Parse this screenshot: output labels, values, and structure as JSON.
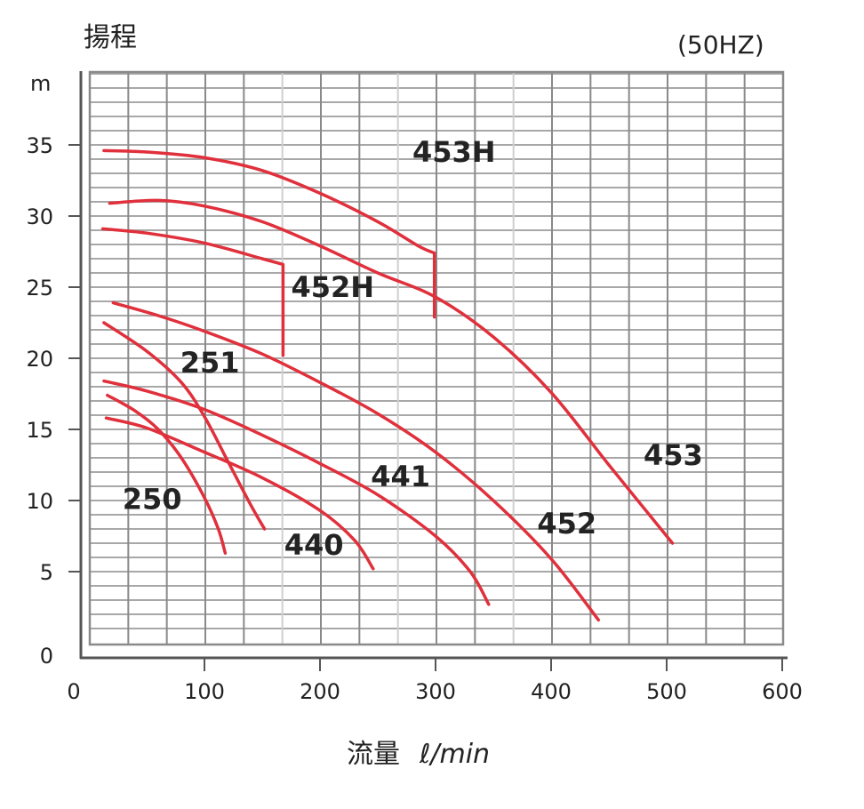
{
  "chart_data": {
    "type": "line",
    "title": "",
    "ylabel_title": "揚程",
    "yunit": "m",
    "xlabel": "流量 ℓ/min",
    "annotation": "(50HZ)",
    "xlim": [
      0,
      600
    ],
    "ylim": [
      0,
      40
    ],
    "xticks": [
      0,
      100,
      200,
      300,
      400,
      500,
      600
    ],
    "yticks": [
      0,
      5,
      10,
      15,
      20,
      25,
      30,
      35
    ],
    "grid": true,
    "grid_minor_y_step": 1,
    "grid_minor_x_step": 33.33,
    "line_color": "#e0303c",
    "series": [
      {
        "name": "453H",
        "label_pos": [
          280,
          33.8
        ],
        "points": [
          [
            13,
            34.6
          ],
          [
            50,
            34.5
          ],
          [
            100,
            34.1
          ],
          [
            150,
            33.2
          ],
          [
            200,
            31.6
          ],
          [
            250,
            29.6
          ],
          [
            285,
            27.9
          ],
          [
            299,
            27.4
          ],
          [
            299,
            22.9
          ]
        ]
      },
      {
        "name": "453",
        "label_pos": [
          480,
          12.5
        ],
        "points": [
          [
            18,
            30.9
          ],
          [
            60,
            31.1
          ],
          [
            100,
            30.7
          ],
          [
            150,
            29.6
          ],
          [
            200,
            27.9
          ],
          [
            250,
            26.0
          ],
          [
            300,
            24.3
          ],
          [
            350,
            21.5
          ],
          [
            400,
            17.6
          ],
          [
            450,
            12.5
          ],
          [
            505,
            7.0
          ]
        ]
      },
      {
        "name": "452H",
        "label_pos": [
          175,
          24.3
        ],
        "points": [
          [
            12,
            29.1
          ],
          [
            50,
            28.8
          ],
          [
            100,
            28.1
          ],
          [
            150,
            27.0
          ],
          [
            168,
            26.6
          ],
          [
            168,
            20.2
          ]
        ]
      },
      {
        "name": "452",
        "label_pos": [
          388,
          7.7
        ],
        "points": [
          [
            21,
            23.9
          ],
          [
            60,
            23.0
          ],
          [
            100,
            21.9
          ],
          [
            150,
            20.3
          ],
          [
            200,
            18.3
          ],
          [
            250,
            16.1
          ],
          [
            300,
            13.4
          ],
          [
            350,
            10.0
          ],
          [
            400,
            5.9
          ],
          [
            441,
            1.6
          ]
        ]
      },
      {
        "name": "251",
        "label_pos": [
          79,
          19.0
        ],
        "points": [
          [
            13,
            22.5
          ],
          [
            50,
            20.5
          ],
          [
            80,
            18.3
          ],
          [
            100,
            15.9
          ],
          [
            120,
            12.8
          ],
          [
            140,
            9.7
          ],
          [
            152,
            8.0
          ]
        ]
      },
      {
        "name": "441",
        "label_pos": [
          244,
          11.0
        ],
        "points": [
          [
            13,
            18.4
          ],
          [
            50,
            17.7
          ],
          [
            100,
            16.4
          ],
          [
            150,
            14.6
          ],
          [
            200,
            12.6
          ],
          [
            250,
            10.4
          ],
          [
            300,
            7.5
          ],
          [
            330,
            5.0
          ],
          [
            346,
            2.7
          ]
        ]
      },
      {
        "name": "250",
        "label_pos": [
          29,
          9.4
        ],
        "points": [
          [
            16,
            17.4
          ],
          [
            40,
            16.3
          ],
          [
            60,
            15.0
          ],
          [
            80,
            13.0
          ],
          [
            100,
            10.2
          ],
          [
            112,
            8.0
          ],
          [
            118,
            6.3
          ]
        ]
      },
      {
        "name": "440",
        "label_pos": [
          169,
          6.2
        ],
        "points": [
          [
            15,
            15.8
          ],
          [
            50,
            15.1
          ],
          [
            100,
            13.4
          ],
          [
            150,
            11.6
          ],
          [
            200,
            9.3
          ],
          [
            230,
            7.2
          ],
          [
            246,
            5.2
          ]
        ]
      }
    ]
  },
  "texts": {
    "ytitle": "揚程",
    "yunit": "m",
    "hz": "(50HZ)",
    "xlabel_jp": "流量",
    "xlabel_unit": "ℓ/min"
  }
}
